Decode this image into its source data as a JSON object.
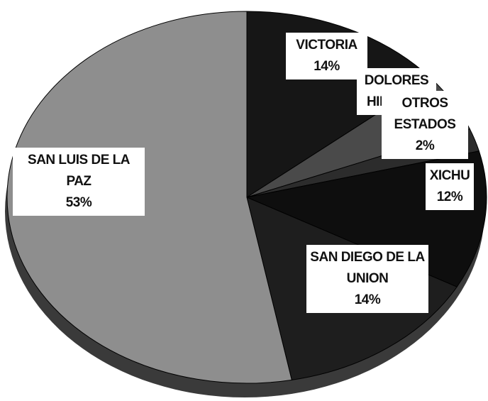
{
  "chart_data": {
    "type": "pie",
    "categories": [
      "VICTORIA",
      "DOLORES HIDALGO",
      "OTROS ESTADOS",
      "XICHU",
      "SAN DIEGO DE LA UNION",
      "SAN LUIS DE LA PAZ"
    ],
    "values": [
      14,
      5,
      2,
      12,
      14,
      53
    ],
    "value_labels": [
      "14%",
      null,
      "2%",
      "12%",
      "14%",
      "53%"
    ],
    "colors": [
      "#161616",
      "#4a4a4a",
      "#2c2c2c",
      "#0e0e0e",
      "#1e1e1e",
      "#8e8e8e"
    ]
  }
}
